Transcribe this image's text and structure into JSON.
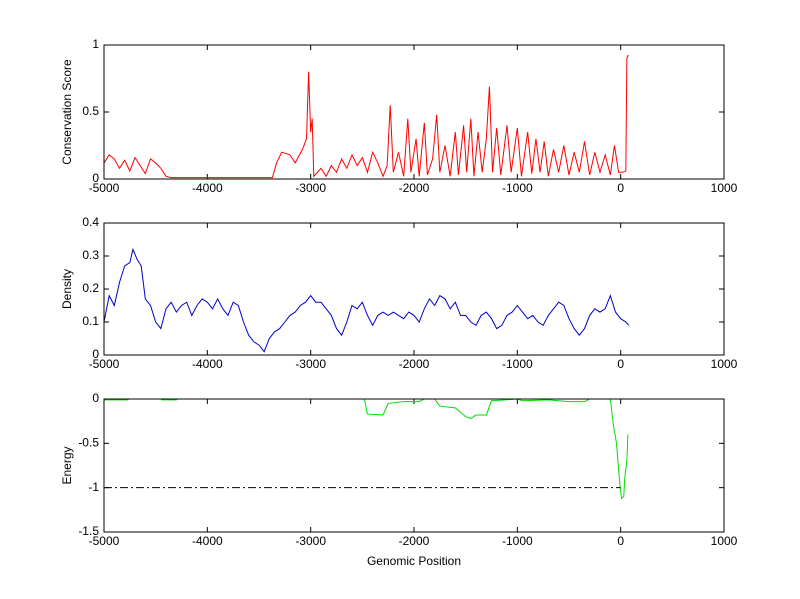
{
  "chart_data": [
    {
      "type": "line",
      "ylabel": "Conservation Score",
      "xlim": [
        -5000,
        1000
      ],
      "xticks": [
        -5000,
        -4000,
        -3000,
        -2000,
        -1000,
        0,
        1000
      ],
      "ylim": [
        0,
        1
      ],
      "yticks": [
        0,
        0.5,
        1
      ],
      "series": [
        {
          "color": "#ff0000",
          "x": [
            -5000,
            -4950,
            -4900,
            -4850,
            -4800,
            -4750,
            -4700,
            -4650,
            -4600,
            -4550,
            -4500,
            -4450,
            -4400,
            -4350,
            -4000,
            -3500,
            -3370,
            -3330,
            -3280,
            -3200,
            -3150,
            -3080,
            -3040,
            -3020,
            -3000,
            -2985,
            -2970,
            -2900,
            -2850,
            -2800,
            -2750,
            -2700,
            -2650,
            -2600,
            -2550,
            -2500,
            -2450,
            -2400,
            -2350,
            -2300,
            -2260,
            -2230,
            -2200,
            -2150,
            -2100,
            -2060,
            -2030,
            -1980,
            -1950,
            -1900,
            -1870,
            -1820,
            -1780,
            -1750,
            -1700,
            -1650,
            -1600,
            -1570,
            -1520,
            -1490,
            -1450,
            -1420,
            -1380,
            -1340,
            -1300,
            -1270,
            -1240,
            -1200,
            -1160,
            -1100,
            -1060,
            -1000,
            -960,
            -900,
            -860,
            -820,
            -780,
            -740,
            -700,
            -650,
            -600,
            -550,
            -500,
            -450,
            -400,
            -350,
            -300,
            -250,
            -200,
            -150,
            -100,
            -60,
            -20,
            20,
            50,
            60,
            70,
            80
          ],
          "values": [
            0.12,
            0.18,
            0.15,
            0.08,
            0.14,
            0.06,
            0.16,
            0.1,
            0.04,
            0.15,
            0.12,
            0.08,
            0.02,
            0.01,
            0.01,
            0.01,
            0.01,
            0.12,
            0.2,
            0.18,
            0.12,
            0.22,
            0.3,
            0.8,
            0.35,
            0.45,
            0.02,
            0.08,
            0.02,
            0.1,
            0.05,
            0.15,
            0.08,
            0.18,
            0.1,
            0.16,
            0.05,
            0.2,
            0.12,
            0.02,
            0.1,
            0.55,
            0.05,
            0.2,
            0.02,
            0.45,
            0.05,
            0.3,
            0.02,
            0.42,
            0.03,
            0.15,
            0.48,
            0.05,
            0.25,
            0.02,
            0.35,
            0.03,
            0.4,
            0.05,
            0.45,
            0.02,
            0.35,
            0.05,
            0.3,
            0.69,
            0.05,
            0.38,
            0.03,
            0.4,
            0.05,
            0.38,
            0.02,
            0.35,
            0.04,
            0.3,
            0.05,
            0.28,
            0.02,
            0.22,
            0.05,
            0.25,
            0.03,
            0.2,
            0.05,
            0.28,
            0.03,
            0.2,
            0.05,
            0.18,
            0.03,
            0.25,
            0.05,
            0.05,
            0.06,
            0.9,
            0.92,
            0.92
          ]
        }
      ]
    },
    {
      "type": "line",
      "ylabel": "Density",
      "xlim": [
        -5000,
        1000
      ],
      "xticks": [
        -5000,
        -4000,
        -3000,
        -2000,
        -1000,
        0,
        1000
      ],
      "ylim": [
        0,
        0.4
      ],
      "yticks": [
        0,
        0.1,
        0.2,
        0.3,
        0.4
      ],
      "series": [
        {
          "color": "#0000c8",
          "x": [
            -5000,
            -4950,
            -4900,
            -4850,
            -4800,
            -4750,
            -4720,
            -4680,
            -4640,
            -4600,
            -4550,
            -4500,
            -4450,
            -4400,
            -4350,
            -4300,
            -4250,
            -4200,
            -4150,
            -4100,
            -4050,
            -4000,
            -3950,
            -3900,
            -3850,
            -3800,
            -3750,
            -3700,
            -3650,
            -3600,
            -3550,
            -3500,
            -3450,
            -3400,
            -3350,
            -3300,
            -3250,
            -3200,
            -3150,
            -3100,
            -3050,
            -3000,
            -2950,
            -2900,
            -2850,
            -2800,
            -2750,
            -2700,
            -2650,
            -2600,
            -2550,
            -2500,
            -2450,
            -2400,
            -2350,
            -2300,
            -2250,
            -2200,
            -2150,
            -2100,
            -2050,
            -2000,
            -1950,
            -1900,
            -1850,
            -1800,
            -1750,
            -1700,
            -1650,
            -1600,
            -1550,
            -1500,
            -1450,
            -1400,
            -1350,
            -1300,
            -1250,
            -1200,
            -1150,
            -1100,
            -1050,
            -1000,
            -950,
            -900,
            -850,
            -800,
            -750,
            -700,
            -650,
            -600,
            -550,
            -500,
            -450,
            -400,
            -350,
            -300,
            -250,
            -200,
            -150,
            -100,
            -50,
            0,
            50,
            80
          ],
          "values": [
            0.1,
            0.18,
            0.15,
            0.22,
            0.27,
            0.28,
            0.32,
            0.29,
            0.27,
            0.17,
            0.15,
            0.1,
            0.08,
            0.14,
            0.16,
            0.13,
            0.15,
            0.16,
            0.12,
            0.15,
            0.17,
            0.16,
            0.14,
            0.17,
            0.14,
            0.12,
            0.16,
            0.15,
            0.1,
            0.06,
            0.04,
            0.03,
            0.01,
            0.05,
            0.07,
            0.08,
            0.1,
            0.12,
            0.13,
            0.15,
            0.16,
            0.18,
            0.16,
            0.16,
            0.14,
            0.12,
            0.08,
            0.06,
            0.1,
            0.15,
            0.14,
            0.16,
            0.12,
            0.09,
            0.12,
            0.13,
            0.12,
            0.13,
            0.12,
            0.11,
            0.13,
            0.12,
            0.1,
            0.14,
            0.17,
            0.15,
            0.18,
            0.17,
            0.14,
            0.16,
            0.12,
            0.12,
            0.1,
            0.09,
            0.12,
            0.13,
            0.11,
            0.08,
            0.09,
            0.12,
            0.13,
            0.15,
            0.13,
            0.11,
            0.12,
            0.1,
            0.09,
            0.12,
            0.14,
            0.16,
            0.15,
            0.11,
            0.08,
            0.06,
            0.08,
            0.12,
            0.14,
            0.13,
            0.14,
            0.18,
            0.13,
            0.11,
            0.1,
            0.09
          ]
        }
      ]
    },
    {
      "type": "line",
      "ylabel": "Energy",
      "xlabel": "Genomic Position",
      "xlim": [
        -5000,
        1000
      ],
      "xticks": [
        -5000,
        -4000,
        -3000,
        -2000,
        -1000,
        0,
        1000
      ],
      "ylim": [
        -1.5,
        0
      ],
      "yticks": [
        -1.5,
        -1,
        -0.5,
        0
      ],
      "series": [
        {
          "color": "#00dd00",
          "x": [
            -5000,
            -4770,
            -4760,
            -4450,
            -4440,
            -4300,
            -4290,
            -2480,
            -2450,
            -2300,
            -2250,
            -2100,
            -1950,
            -1900,
            -1800,
            -1750,
            -1600,
            -1550,
            -1500,
            -1450,
            -1400,
            -1300,
            -1250,
            -1000,
            -950,
            -700,
            -500,
            -350,
            -300,
            -100,
            -70,
            -40,
            -20,
            0,
            10,
            30,
            40,
            60,
            70
          ],
          "values": [
            -0.01,
            -0.01,
            0,
            0,
            -0.01,
            -0.01,
            0,
            0,
            -0.17,
            -0.18,
            -0.05,
            -0.03,
            -0.03,
            0,
            0,
            -0.08,
            -0.1,
            -0.15,
            -0.2,
            -0.22,
            -0.18,
            -0.18,
            -0.02,
            0,
            -0.02,
            -0.01,
            -0.03,
            -0.03,
            0,
            0,
            -0.3,
            -0.5,
            -0.8,
            -1.05,
            -1.12,
            -1.1,
            -0.88,
            -0.7,
            -0.4
          ]
        },
        {
          "color": "#000000",
          "dash": "dashdot",
          "x": [
            -5000,
            0
          ],
          "values": [
            -1,
            -1
          ]
        }
      ]
    }
  ]
}
